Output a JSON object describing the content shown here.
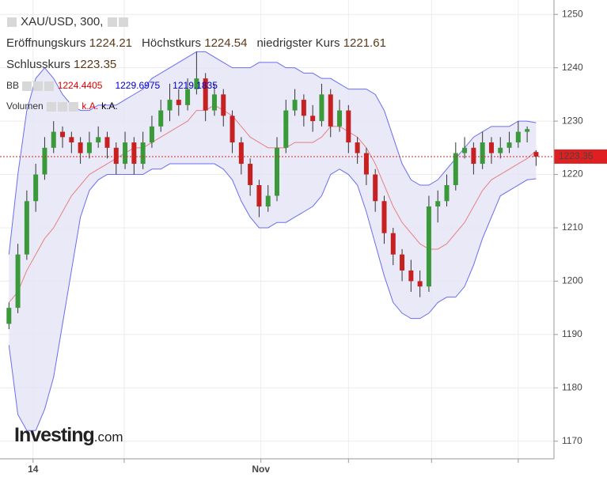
{
  "chart_data": {
    "type": "candlestick",
    "title": "XAU/USD, 300,",
    "ohlc_labels": [
      "Eröffnungskurs",
      "Höchstkurs",
      "niedrigster Kurs",
      "Schlusskurs"
    ],
    "indicator": "BB",
    "volume_label": "Volumen",
    "volume_values": [
      "k.A.",
      "k.A."
    ],
    "watermark": "Investing",
    "watermark_suffix": ".com",
    "up_color": "#3a9a3a",
    "down_color": "#c62020",
    "band_color": "#6a6ef0",
    "band_fill": "#e3e3f6",
    "middle_color": "#e88080",
    "price_color": "#e02020",
    "ylim": [
      1166.7,
      1252.7
    ],
    "yticks": [
      1170,
      1180,
      1190,
      1200,
      1210,
      1220,
      1230,
      1240,
      1250
    ],
    "xlim": [
      -1,
      61
    ],
    "xgrid": [
      2.7,
      12.9,
      28.2,
      38,
      47.3,
      57
    ],
    "xticks": [
      {
        "value": 2.7,
        "label": "14"
      },
      {
        "value": 28.2,
        "label": "Nov"
      }
    ],
    "x": [
      0,
      1,
      2,
      3,
      4,
      5,
      6,
      7,
      8,
      9,
      10,
      11,
      12,
      13,
      14,
      15,
      16,
      17,
      18,
      19,
      20,
      21,
      22,
      23,
      24,
      25,
      26,
      27,
      28,
      29,
      30,
      31,
      32,
      33,
      34,
      35,
      36,
      37,
      38,
      39,
      40,
      41,
      42,
      43,
      44,
      45,
      46,
      47,
      48,
      49,
      50,
      51,
      52,
      53,
      54,
      55,
      56,
      57,
      58,
      59
    ],
    "candles": [
      [
        1192,
        1196,
        1191,
        1195
      ],
      [
        1195,
        1207,
        1194,
        1205
      ],
      [
        1205,
        1217,
        1204,
        1215
      ],
      [
        1215,
        1222,
        1213,
        1220
      ],
      [
        1220,
        1227,
        1219,
        1225
      ],
      [
        1225,
        1230,
        1224,
        1228
      ],
      [
        1228,
        1229,
        1225,
        1227
      ],
      [
        1227,
        1228,
        1224,
        1226
      ],
      [
        1226,
        1227,
        1222,
        1224
      ],
      [
        1224,
        1228,
        1223,
        1226
      ],
      [
        1226,
        1229,
        1225,
        1227
      ],
      [
        1227,
        1228,
        1223,
        1225
      ],
      [
        1225,
        1226,
        1220,
        1222
      ],
      [
        1222,
        1228,
        1221,
        1226
      ],
      [
        1226,
        1227,
        1220,
        1222
      ],
      [
        1222,
        1228,
        1221,
        1226
      ],
      [
        1226,
        1231,
        1225,
        1229
      ],
      [
        1229,
        1234,
        1228,
        1232
      ],
      [
        1232,
        1237,
        1230,
        1234
      ],
      [
        1234,
        1236,
        1231,
        1233
      ],
      [
        1233,
        1238,
        1232,
        1236
      ],
      [
        1236,
        1243,
        1235,
        1238
      ],
      [
        1238,
        1239,
        1230,
        1232
      ],
      [
        1232,
        1237,
        1231,
        1235
      ],
      [
        1235,
        1236,
        1229,
        1231
      ],
      [
        1231,
        1232,
        1224,
        1226
      ],
      [
        1226,
        1227,
        1220,
        1222
      ],
      [
        1222,
        1223,
        1216,
        1218
      ],
      [
        1218,
        1219,
        1212,
        1214
      ],
      [
        1214,
        1218,
        1213,
        1216
      ],
      [
        1216,
        1227,
        1215,
        1225
      ],
      [
        1225,
        1234,
        1224,
        1232
      ],
      [
        1232,
        1236,
        1231,
        1234
      ],
      [
        1234,
        1235,
        1229,
        1231
      ],
      [
        1231,
        1233,
        1228,
        1230
      ],
      [
        1230,
        1237,
        1229,
        1235
      ],
      [
        1235,
        1236,
        1227,
        1229
      ],
      [
        1229,
        1234,
        1228,
        1232
      ],
      [
        1232,
        1233,
        1224,
        1226
      ],
      [
        1226,
        1227,
        1222,
        1224
      ],
      [
        1224,
        1225,
        1218,
        1220
      ],
      [
        1220,
        1221,
        1213,
        1215
      ],
      [
        1215,
        1216,
        1207,
        1209
      ],
      [
        1209,
        1210,
        1203,
        1205
      ],
      [
        1205,
        1206,
        1200,
        1202
      ],
      [
        1202,
        1204,
        1198,
        1200
      ],
      [
        1200,
        1202,
        1197,
        1199
      ],
      [
        1199,
        1216,
        1198,
        1214
      ],
      [
        1214,
        1217,
        1211,
        1215
      ],
      [
        1215,
        1220,
        1214,
        1218
      ],
      [
        1218,
        1226,
        1217,
        1224
      ],
      [
        1224,
        1227,
        1223,
        1225
      ],
      [
        1225,
        1226,
        1220,
        1222
      ],
      [
        1222,
        1228,
        1221,
        1226
      ],
      [
        1226,
        1227,
        1222,
        1224
      ],
      [
        1224,
        1227,
        1223,
        1225
      ],
      [
        1225,
        1228,
        1224,
        1226
      ],
      [
        1226,
        1230,
        1225,
        1228
      ],
      [
        1228,
        1229,
        1226,
        1228.5
      ],
      [
        1224.21,
        1224.54,
        1221.61,
        1223.35
      ]
    ],
    "bands": {
      "upper": [
        1205,
        1220,
        1232,
        1238,
        1240,
        1238,
        1235,
        1233,
        1232,
        1232,
        1233,
        1233,
        1233,
        1234,
        1235,
        1236,
        1238,
        1239,
        1240,
        1241,
        1242,
        1243,
        1243,
        1242,
        1241,
        1240,
        1240,
        1240,
        1241,
        1241,
        1241,
        1240,
        1240,
        1239,
        1239,
        1238,
        1238,
        1237,
        1236,
        1236,
        1236,
        1235,
        1232,
        1227,
        1222,
        1219,
        1218,
        1218,
        1219,
        1221,
        1223,
        1225,
        1227,
        1228,
        1229,
        1229,
        1229,
        1230,
        1230,
        1229.6975
      ],
      "middle": [
        1196,
        1198,
        1202,
        1205,
        1208,
        1210,
        1213,
        1216,
        1218,
        1220,
        1221,
        1222,
        1223,
        1224,
        1225,
        1225,
        1226,
        1227,
        1228,
        1229,
        1230,
        1232,
        1232,
        1233,
        1232,
        1231,
        1229,
        1227,
        1226,
        1225,
        1225,
        1225,
        1226,
        1226,
        1226,
        1227,
        1229,
        1229,
        1228,
        1227,
        1225,
        1222,
        1218,
        1214,
        1211,
        1209,
        1207,
        1206,
        1206,
        1207,
        1209,
        1211,
        1214,
        1217,
        1219,
        1220,
        1221,
        1222,
        1223,
        1224.4405
      ],
      "lower": [
        1188,
        1175,
        1172,
        1172,
        1176,
        1182,
        1192,
        1202,
        1212,
        1217,
        1219,
        1220,
        1220,
        1220,
        1220,
        1220,
        1221,
        1221,
        1222,
        1222,
        1222,
        1222,
        1222,
        1222,
        1221,
        1219,
        1215,
        1212,
        1210,
        1210,
        1211,
        1211,
        1212,
        1213,
        1214,
        1216,
        1220,
        1221,
        1220,
        1218,
        1213,
        1207,
        1201,
        1196,
        1194,
        1193,
        1193,
        1194,
        1196,
        1197,
        1197,
        1199,
        1203,
        1208,
        1212,
        1216,
        1217,
        1218,
        1219,
        1219.1835
      ]
    }
  }
}
